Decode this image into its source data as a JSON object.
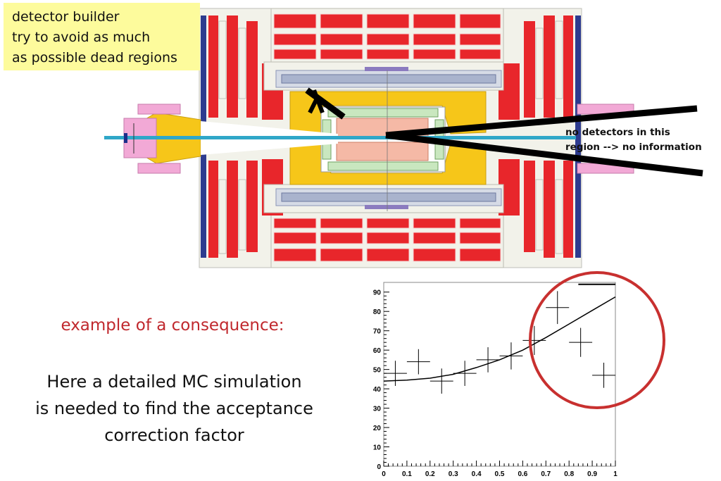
{
  "note": {
    "lines": [
      "detector builder",
      "try to avoid as much",
      "as possible dead regions"
    ]
  },
  "dead_region_label": {
    "lines": [
      "no detectors in this",
      "region --> no information"
    ]
  },
  "consequence": {
    "heading": "example of a consequence:",
    "lines": [
      "Here a detailed MC simulation",
      "is needed to find the acceptance",
      "correction factor"
    ]
  },
  "colors": {
    "note_bg": "#fdfb9c",
    "heading": "#c0282d",
    "calorimeter_red": "#e8262b",
    "yellow": "#f6c619",
    "pink": "#f2a9d6",
    "beam": "#2fa7c8",
    "circle": "#c8302f"
  },
  "chart_data": {
    "type": "scatter",
    "xlim": [
      0,
      1
    ],
    "ylim": [
      0,
      95
    ],
    "xticks": [
      0,
      0.1,
      0.2,
      0.3,
      0.4,
      0.5,
      0.6,
      0.7,
      0.8,
      0.9,
      1
    ],
    "xtick_labels": [
      "0",
      "0.1",
      "0.2",
      "0.3",
      "0.4",
      "0.5",
      "0.6",
      "0.7",
      "0.8",
      "0.9",
      "1"
    ],
    "yticks": [
      0,
      10,
      20,
      30,
      40,
      50,
      60,
      70,
      80,
      90
    ],
    "ytick_labels": [
      "0",
      "10",
      "20",
      "30",
      "40",
      "50",
      "60",
      "70",
      "80",
      "90"
    ],
    "points": [
      {
        "x": 0.05,
        "y": 48,
        "xerr": 0.05,
        "yerr": 6.5
      },
      {
        "x": 0.15,
        "y": 54,
        "xerr": 0.05,
        "yerr": 6.5
      },
      {
        "x": 0.25,
        "y": 44,
        "xerr": 0.05,
        "yerr": 6.5
      },
      {
        "x": 0.35,
        "y": 48,
        "xerr": 0.05,
        "yerr": 6.5
      },
      {
        "x": 0.45,
        "y": 55,
        "xerr": 0.05,
        "yerr": 6.5
      },
      {
        "x": 0.55,
        "y": 57,
        "xerr": 0.05,
        "yerr": 7
      },
      {
        "x": 0.65,
        "y": 65,
        "xerr": 0.05,
        "yerr": 7.5
      },
      {
        "x": 0.75,
        "y": 82,
        "xerr": 0.05,
        "yerr": 8.5
      },
      {
        "x": 0.85,
        "y": 64,
        "xerr": 0.05,
        "yerr": 7.5
      },
      {
        "x": 0.95,
        "y": 47,
        "xerr": 0.05,
        "yerr": 6.5
      }
    ],
    "fit_curve": {
      "x": [
        0,
        0.1,
        0.2,
        0.3,
        0.4,
        0.5,
        0.6,
        0.7,
        0.8,
        0.9,
        1
      ],
      "y": [
        44,
        44.5,
        45.5,
        47.5,
        51,
        55,
        60,
        66.5,
        73.5,
        80.5,
        87.5
      ]
    },
    "top_line": {
      "x": [
        0.84,
        1.0
      ],
      "y": 94
    },
    "highlight_circle": {
      "center": [
        0.855,
        64
      ],
      "label": ""
    }
  }
}
